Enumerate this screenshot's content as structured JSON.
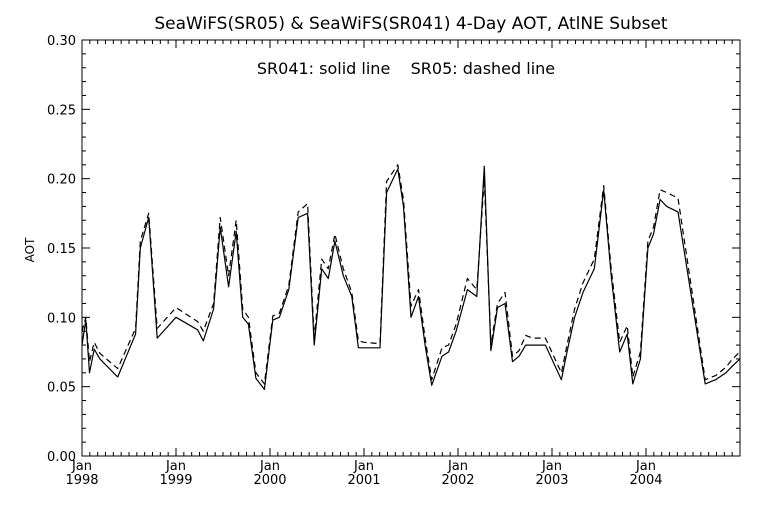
{
  "chart_data": {
    "type": "line",
    "title": "SeaWiFS(SR05) & SeaWiFS(SR041) 4-Day AOT, AtlNE Subset",
    "legend_text": "SR041: solid line    SR05: dashed line",
    "xlabel": "",
    "ylabel": "AOT",
    "xlim": [
      1998.0,
      2005.0
    ],
    "ylim": [
      0.0,
      0.3
    ],
    "grid": false,
    "legend_placement": "top-center",
    "y_ticks": [
      "0.00",
      "0.05",
      "0.10",
      "0.15",
      "0.20",
      "0.25",
      "0.30"
    ],
    "x_ticks": [
      {
        "month": "Jan",
        "year": "1998"
      },
      {
        "month": "Jan",
        "year": "1999"
      },
      {
        "month": "Jan",
        "year": "2000"
      },
      {
        "month": "Jan",
        "year": "2001"
      },
      {
        "month": "Jan",
        "year": "2002"
      },
      {
        "month": "Jan",
        "year": "2003"
      },
      {
        "month": "Jan",
        "year": "2004"
      }
    ],
    "series": [
      {
        "name": "SR041",
        "style": "solid",
        "x": [
          1998.0,
          1998.04,
          1998.08,
          1998.13,
          1998.19,
          1998.38,
          1998.57,
          1998.62,
          1998.71,
          1998.8,
          1999.0,
          1999.23,
          1999.29,
          1999.4,
          1999.47,
          1999.56,
          1999.64,
          1999.71,
          1999.77,
          1999.85,
          1999.94,
          2000.03,
          2000.1,
          2000.2,
          2000.3,
          2000.4,
          2000.47,
          2000.55,
          2000.62,
          2000.69,
          2000.78,
          2000.87,
          2000.94,
          2001.0,
          2001.17,
          2001.24,
          2001.36,
          2001.42,
          2001.5,
          2001.58,
          2001.65,
          2001.72,
          2001.83,
          2001.9,
          2001.98,
          2002.1,
          2002.2,
          2002.28,
          2002.35,
          2002.42,
          2002.5,
          2002.58,
          2002.65,
          2002.72,
          2002.79,
          2002.93,
          2003.1,
          2003.16,
          2003.24,
          2003.33,
          2003.45,
          2003.55,
          2003.63,
          2003.72,
          2003.8,
          2003.86,
          2003.94,
          2004.02,
          2004.08,
          2004.15,
          2004.22,
          2004.34,
          2004.63,
          2004.74,
          2004.85,
          2004.92,
          2005.0
        ],
        "values": [
          0.08,
          0.098,
          0.06,
          0.077,
          0.07,
          0.057,
          0.088,
          0.15,
          0.172,
          0.085,
          0.1,
          0.091,
          0.083,
          0.106,
          0.165,
          0.122,
          0.162,
          0.1,
          0.095,
          0.056,
          0.048,
          0.098,
          0.1,
          0.12,
          0.172,
          0.175,
          0.08,
          0.135,
          0.128,
          0.155,
          0.13,
          0.115,
          0.078,
          0.078,
          0.078,
          0.19,
          0.207,
          0.18,
          0.1,
          0.115,
          0.08,
          0.051,
          0.072,
          0.075,
          0.09,
          0.12,
          0.115,
          0.209,
          0.076,
          0.107,
          0.11,
          0.068,
          0.072,
          0.08,
          0.08,
          0.08,
          0.055,
          0.075,
          0.1,
          0.118,
          0.135,
          0.192,
          0.13,
          0.075,
          0.088,
          0.052,
          0.07,
          0.15,
          0.16,
          0.185,
          0.18,
          0.176,
          0.052,
          0.055,
          0.06,
          0.065,
          0.07
        ]
      },
      {
        "name": "SR05",
        "style": "dashed",
        "x": [
          1998.0,
          1998.04,
          1998.08,
          1998.13,
          1998.19,
          1998.38,
          1998.57,
          1998.62,
          1998.71,
          1998.8,
          1999.0,
          1999.23,
          1999.29,
          1999.4,
          1999.47,
          1999.56,
          1999.64,
          1999.71,
          1999.77,
          1999.85,
          1999.94,
          2000.03,
          2000.1,
          2000.2,
          2000.3,
          2000.4,
          2000.47,
          2000.55,
          2000.62,
          2000.69,
          2000.78,
          2000.87,
          2000.94,
          2001.0,
          2001.17,
          2001.24,
          2001.36,
          2001.42,
          2001.5,
          2001.58,
          2001.65,
          2001.72,
          2001.83,
          2001.9,
          2001.98,
          2002.1,
          2002.2,
          2002.28,
          2002.35,
          2002.42,
          2002.5,
          2002.58,
          2002.65,
          2002.72,
          2002.79,
          2002.93,
          2003.1,
          2003.16,
          2003.24,
          2003.33,
          2003.45,
          2003.55,
          2003.63,
          2003.72,
          2003.8,
          2003.86,
          2003.94,
          2004.02,
          2004.08,
          2004.15,
          2004.22,
          2004.34,
          2004.63,
          2004.74,
          2004.85,
          2004.92,
          2005.0
        ],
        "values": [
          0.09,
          0.1,
          0.068,
          0.082,
          0.074,
          0.063,
          0.092,
          0.155,
          0.175,
          0.092,
          0.107,
          0.097,
          0.09,
          0.11,
          0.172,
          0.13,
          0.17,
          0.106,
          0.1,
          0.06,
          0.052,
          0.101,
          0.103,
          0.123,
          0.176,
          0.182,
          0.085,
          0.142,
          0.135,
          0.16,
          0.135,
          0.118,
          0.083,
          0.082,
          0.081,
          0.198,
          0.21,
          0.185,
          0.108,
          0.12,
          0.085,
          0.055,
          0.078,
          0.08,
          0.095,
          0.128,
          0.12,
          0.2,
          0.08,
          0.11,
          0.118,
          0.072,
          0.076,
          0.087,
          0.085,
          0.085,
          0.06,
          0.08,
          0.106,
          0.125,
          0.142,
          0.195,
          0.135,
          0.082,
          0.094,
          0.057,
          0.075,
          0.155,
          0.165,
          0.192,
          0.19,
          0.186,
          0.055,
          0.058,
          0.064,
          0.07,
          0.075
        ]
      }
    ]
  }
}
